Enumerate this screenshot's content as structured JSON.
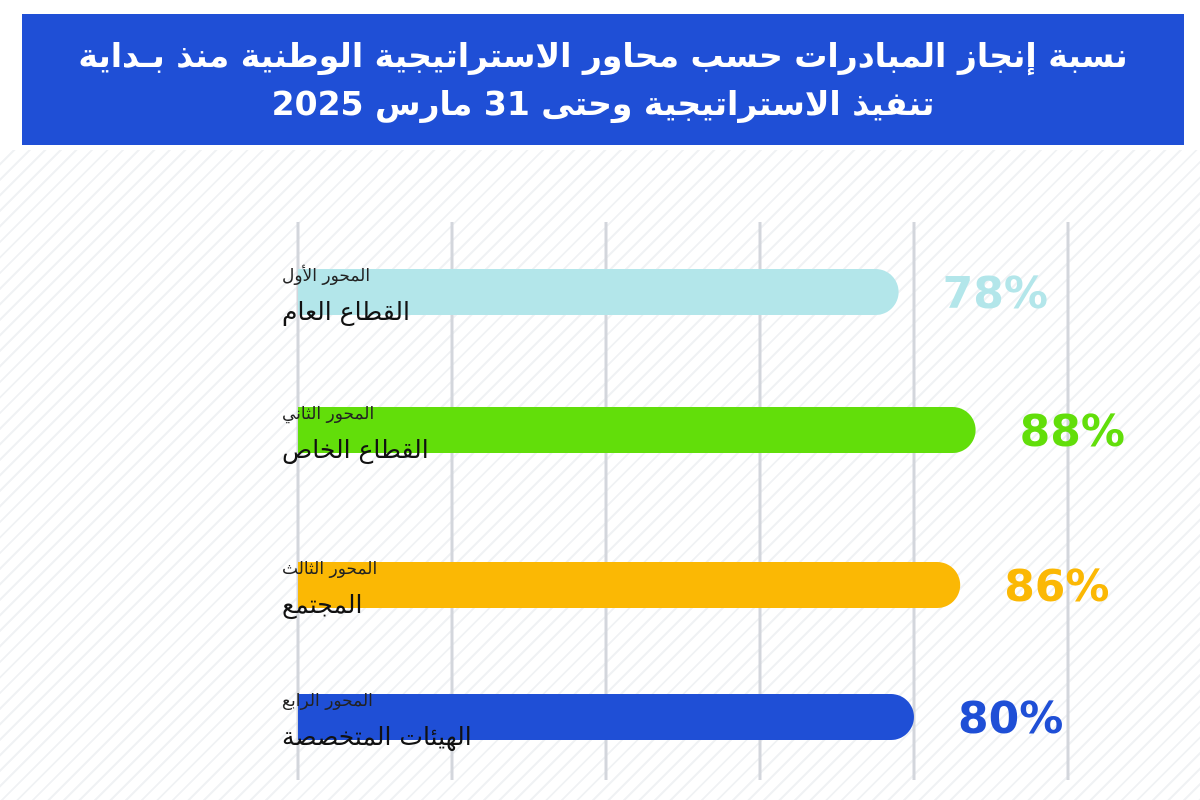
{
  "title": {
    "line1": "نسبة إنجاز المبادرات حسب محاور الاستراتيجية الوطنية منذ بـداية",
    "line2": "تنفيذ الاستراتيجية وحتى 31 مارس 2025"
  },
  "chart_data": {
    "type": "bar",
    "orientation": "horizontal",
    "categories": [
      {
        "axis": "المحور الأول",
        "name": "القطاع العام"
      },
      {
        "axis": "المحور الثاني",
        "name": "القطاع الخاص"
      },
      {
        "axis": "المحور الثالث",
        "name": "المجتمع"
      },
      {
        "axis": "المحور الرابع",
        "name": "الهيئات المتخصصة"
      }
    ],
    "values": [
      78,
      88,
      86,
      80
    ],
    "value_labels": [
      "78%",
      "88%",
      "86%",
      "80%"
    ],
    "colors": [
      "#b3e6ea",
      "#62de0a",
      "#fbb804",
      "#1f4fd6"
    ],
    "xlim": [
      0,
      100
    ],
    "grid": true,
    "legend": "none"
  }
}
